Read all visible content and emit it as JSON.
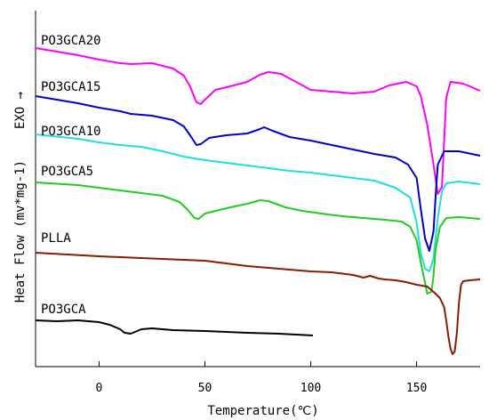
{
  "chart_data": {
    "type": "line",
    "title": "",
    "xlabel": "Temperature(℃)",
    "ylabel": "Heat Flow (mv*mg-1)",
    "ylabel_suffix": "EXO →",
    "xlim": [
      -30,
      180
    ],
    "xticks": [
      0,
      50,
      100,
      150
    ],
    "yticks": [],
    "grid": false,
    "legend": "none",
    "series": [
      {
        "name": "PO3GCA20",
        "color": "#ff00ff",
        "points": [
          [
            -30,
            54
          ],
          [
            -10,
            62
          ],
          [
            0,
            67
          ],
          [
            10,
            71
          ],
          [
            15,
            72
          ],
          [
            25,
            71
          ],
          [
            35,
            77
          ],
          [
            40,
            85
          ],
          [
            43,
            97
          ],
          [
            46,
            115
          ],
          [
            48,
            117
          ],
          [
            50,
            112
          ],
          [
            55,
            101
          ],
          [
            62,
            97
          ],
          [
            70,
            92
          ],
          [
            76,
            84
          ],
          [
            80,
            81
          ],
          [
            86,
            83
          ],
          [
            93,
            92
          ],
          [
            100,
            101
          ],
          [
            110,
            103
          ],
          [
            120,
            105
          ],
          [
            130,
            103
          ],
          [
            137,
            96
          ],
          [
            145,
            92
          ],
          [
            150,
            97
          ],
          [
            152,
            108
          ],
          [
            155,
            140
          ],
          [
            158,
            185
          ],
          [
            160,
            218
          ],
          [
            162,
            210
          ],
          [
            163,
            160
          ],
          [
            164,
            110
          ],
          [
            166,
            92
          ],
          [
            172,
            94
          ],
          [
            180,
            102
          ]
        ]
      },
      {
        "name": "PO3GCA15",
        "color": "#0000cd",
        "points": [
          [
            -30,
            108
          ],
          [
            -10,
            116
          ],
          [
            0,
            121
          ],
          [
            10,
            125
          ],
          [
            15,
            128
          ],
          [
            25,
            130
          ],
          [
            35,
            135
          ],
          [
            40,
            142
          ],
          [
            43,
            152
          ],
          [
            46,
            163
          ],
          [
            48,
            162
          ],
          [
            52,
            155
          ],
          [
            60,
            152
          ],
          [
            70,
            150
          ],
          [
            76,
            145
          ],
          [
            78,
            143
          ],
          [
            82,
            147
          ],
          [
            90,
            154
          ],
          [
            100,
            158
          ],
          [
            110,
            163
          ],
          [
            120,
            168
          ],
          [
            130,
            173
          ],
          [
            140,
            177
          ],
          [
            146,
            185
          ],
          [
            150,
            200
          ],
          [
            152,
            235
          ],
          [
            154,
            268
          ],
          [
            156,
            282
          ],
          [
            158,
            260
          ],
          [
            159,
            220
          ],
          [
            160,
            185
          ],
          [
            163,
            170
          ],
          [
            170,
            170
          ],
          [
            180,
            175
          ]
        ]
      },
      {
        "name": "PO3GCA10",
        "color": "#22dddd",
        "points": [
          [
            -30,
            151
          ],
          [
            -10,
            156
          ],
          [
            0,
            160
          ],
          [
            10,
            163
          ],
          [
            20,
            165
          ],
          [
            30,
            170
          ],
          [
            40,
            176
          ],
          [
            50,
            180
          ],
          [
            60,
            183
          ],
          [
            70,
            186
          ],
          [
            80,
            189
          ],
          [
            90,
            192
          ],
          [
            100,
            194
          ],
          [
            110,
            197
          ],
          [
            120,
            200
          ],
          [
            130,
            203
          ],
          [
            140,
            211
          ],
          [
            147,
            222
          ],
          [
            150,
            250
          ],
          [
            152,
            285
          ],
          [
            154,
            302
          ],
          [
            156,
            305
          ],
          [
            158,
            290
          ],
          [
            160,
            245
          ],
          [
            162,
            215
          ],
          [
            164,
            206
          ],
          [
            170,
            204
          ],
          [
            180,
            207
          ]
        ]
      },
      {
        "name": "PO3GCA5",
        "color": "#22cc22",
        "points": [
          [
            -30,
            205
          ],
          [
            -10,
            208
          ],
          [
            0,
            211
          ],
          [
            10,
            214
          ],
          [
            20,
            217
          ],
          [
            30,
            220
          ],
          [
            38,
            227
          ],
          [
            42,
            236
          ],
          [
            45,
            245
          ],
          [
            47,
            246
          ],
          [
            50,
            240
          ],
          [
            55,
            237
          ],
          [
            62,
            233
          ],
          [
            70,
            229
          ],
          [
            76,
            225
          ],
          [
            80,
            226
          ],
          [
            88,
            233
          ],
          [
            96,
            237
          ],
          [
            105,
            240
          ],
          [
            115,
            243
          ],
          [
            125,
            245
          ],
          [
            135,
            247
          ],
          [
            143,
            249
          ],
          [
            147,
            255
          ],
          [
            150,
            270
          ],
          [
            152,
            295
          ],
          [
            154,
            318
          ],
          [
            155,
            330
          ],
          [
            157,
            328
          ],
          [
            158,
            310
          ],
          [
            159,
            280
          ],
          [
            161,
            255
          ],
          [
            164,
            245
          ],
          [
            170,
            244
          ],
          [
            180,
            246
          ]
        ]
      },
      {
        "name": "PLLA",
        "color": "#8b1a00",
        "points": [
          [
            -30,
            284
          ],
          [
            0,
            288
          ],
          [
            20,
            290
          ],
          [
            40,
            292
          ],
          [
            50,
            293
          ],
          [
            60,
            296
          ],
          [
            70,
            299
          ],
          [
            80,
            301
          ],
          [
            90,
            303
          ],
          [
            100,
            305
          ],
          [
            110,
            306
          ],
          [
            120,
            309
          ],
          [
            125,
            312
          ],
          [
            128,
            310
          ],
          [
            132,
            313
          ],
          [
            135,
            314
          ],
          [
            140,
            315
          ],
          [
            145,
            317
          ],
          [
            150,
            320
          ],
          [
            155,
            322
          ],
          [
            158,
            328
          ],
          [
            161,
            335
          ],
          [
            163,
            345
          ],
          [
            164,
            360
          ],
          [
            165,
            378
          ],
          [
            166,
            392
          ],
          [
            167,
            398
          ],
          [
            168,
            395
          ],
          [
            169,
            375
          ],
          [
            170,
            340
          ],
          [
            171,
            320
          ],
          [
            172,
            316
          ],
          [
            175,
            315
          ],
          [
            180,
            314
          ]
        ]
      },
      {
        "name": "PO3GCA",
        "color": "#000000",
        "points": [
          [
            -30,
            360
          ],
          [
            -20,
            361
          ],
          [
            -10,
            360
          ],
          [
            0,
            362
          ],
          [
            5,
            365
          ],
          [
            10,
            370
          ],
          [
            12,
            374
          ],
          [
            15,
            375
          ],
          [
            17,
            373
          ],
          [
            20,
            370
          ],
          [
            25,
            369
          ],
          [
            35,
            371
          ],
          [
            50,
            372
          ],
          [
            70,
            374
          ],
          [
            85,
            375
          ],
          [
            101,
            377
          ]
        ]
      }
    ]
  }
}
